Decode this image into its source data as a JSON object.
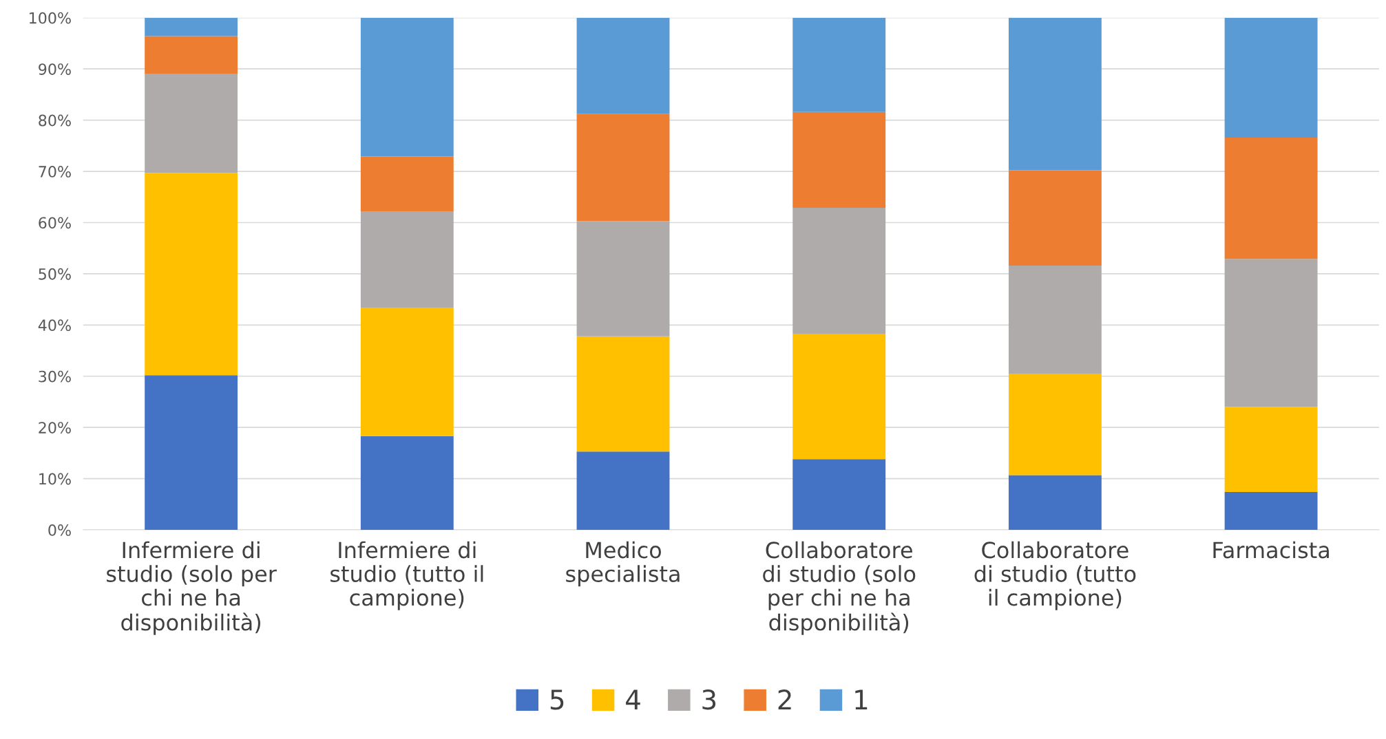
{
  "chart_data": {
    "type": "bar",
    "stacked": true,
    "categories": [
      "Infermiere di\nstudio (solo per\nchi ne ha\ndisponibilità)",
      "Infermiere di\nstudio (tutto il\ncampione)",
      "Medico\nspecialista",
      "Collaboratore\ndi studio (solo\nper chi ne ha\ndisponibilità)",
      "Collaboratore\ndi studio (tutto\nil campione)",
      "Farmacista"
    ],
    "series": [
      {
        "name": "5",
        "color": "#4472c4",
        "values": [
          30.2,
          18.3,
          15.3,
          13.8,
          10.7,
          7.4
        ]
      },
      {
        "name": "4",
        "color": "#ffc000",
        "values": [
          39.5,
          25.0,
          22.5,
          24.5,
          19.8,
          16.6
        ]
      },
      {
        "name": "3",
        "color": "#afabab",
        "values": [
          19.3,
          18.9,
          22.5,
          24.6,
          21.1,
          28.9
        ]
      },
      {
        "name": "2",
        "color": "#ed7d31",
        "values": [
          7.4,
          10.7,
          20.9,
          18.7,
          18.6,
          23.7
        ]
      },
      {
        "name": "1",
        "color": "#5b9bd5",
        "values": [
          3.6,
          27.1,
          18.8,
          18.4,
          29.8,
          23.4
        ]
      }
    ],
    "ylim": [
      0,
      100
    ],
    "yticks": [
      {
        "value": 0,
        "label": "0%"
      },
      {
        "value": 10,
        "label": "10%"
      },
      {
        "value": 20,
        "label": "20%"
      },
      {
        "value": 30,
        "label": "30%"
      },
      {
        "value": 40,
        "label": "40%"
      },
      {
        "value": 50,
        "label": "50%"
      },
      {
        "value": 60,
        "label": "60%"
      },
      {
        "value": 70,
        "label": "70%"
      },
      {
        "value": 80,
        "label": "80%"
      },
      {
        "value": 90,
        "label": "90%"
      },
      {
        "value": 100,
        "label": "100%"
      }
    ],
    "grid": "y",
    "legend": "bottom"
  }
}
